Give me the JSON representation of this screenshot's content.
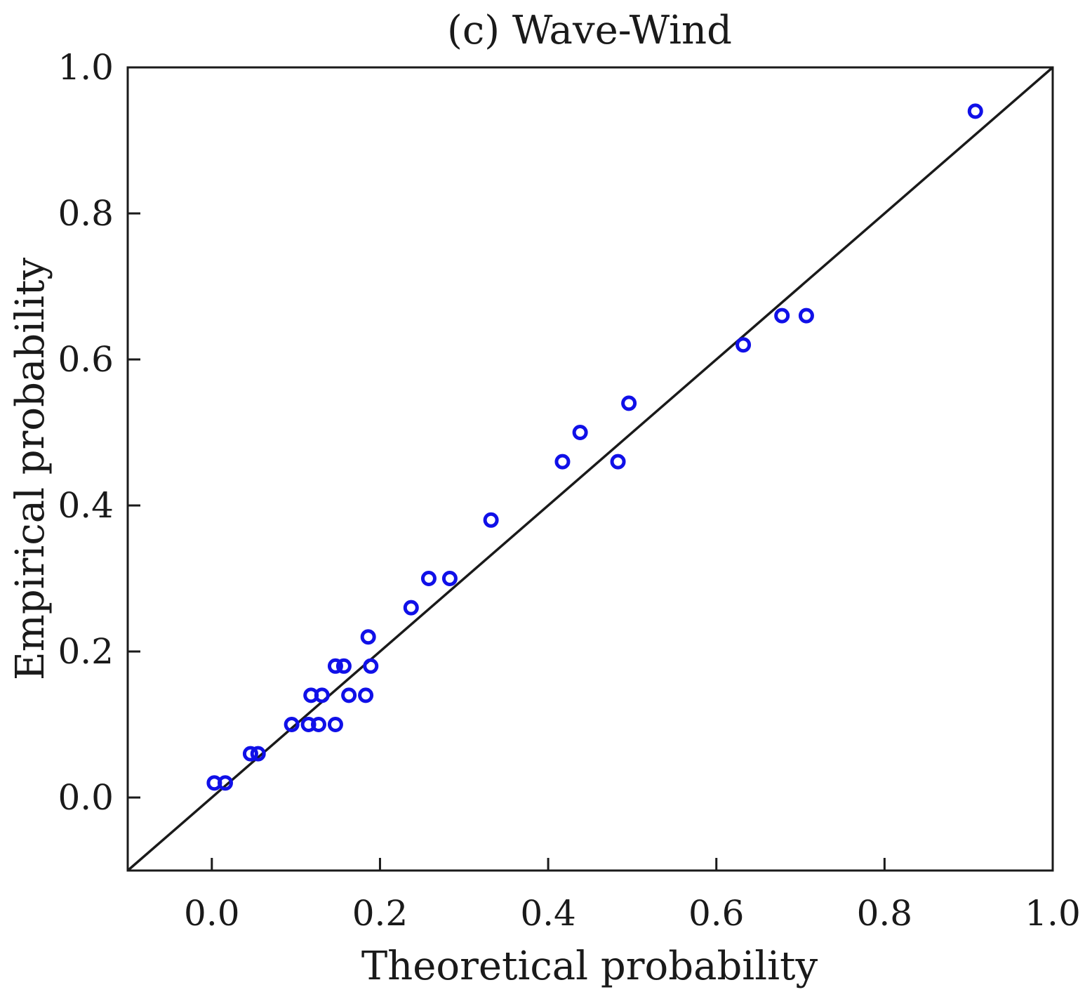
{
  "chart_data": {
    "type": "scatter",
    "title": "(c) Wave-Wind",
    "xlabel": "Theoretical probability",
    "ylabel": "Empirical probability",
    "xlim": [
      -0.1,
      1.0
    ],
    "ylim": [
      -0.1,
      1.0
    ],
    "xticks": [
      0.0,
      0.2,
      0.4,
      0.6,
      0.8,
      1.0
    ],
    "yticks": [
      0.0,
      0.2,
      0.4,
      0.6,
      0.8,
      1.0
    ],
    "xtick_labels": [
      "0.0",
      "0.2",
      "0.4",
      "0.6",
      "0.8",
      "1.0"
    ],
    "ytick_labels": [
      "0.0",
      "0.2",
      "0.4",
      "0.6",
      "0.8",
      "1.0"
    ],
    "grid": false,
    "reference_line": {
      "from": [
        -0.1,
        -0.1
      ],
      "to": [
        1.0,
        1.0
      ],
      "color": "#1a1a1a"
    },
    "series": [
      {
        "name": "observations",
        "marker": "open-circle",
        "color": "#1010e8",
        "points": [
          [
            0.003,
            0.02
          ],
          [
            0.016,
            0.02
          ],
          [
            0.046,
            0.06
          ],
          [
            0.055,
            0.06
          ],
          [
            0.095,
            0.1
          ],
          [
            0.115,
            0.1
          ],
          [
            0.127,
            0.1
          ],
          [
            0.147,
            0.1
          ],
          [
            0.118,
            0.14
          ],
          [
            0.131,
            0.14
          ],
          [
            0.163,
            0.14
          ],
          [
            0.183,
            0.14
          ],
          [
            0.147,
            0.18
          ],
          [
            0.157,
            0.18
          ],
          [
            0.189,
            0.18
          ],
          [
            0.186,
            0.22
          ],
          [
            0.237,
            0.26
          ],
          [
            0.258,
            0.3
          ],
          [
            0.283,
            0.3
          ],
          [
            0.332,
            0.38
          ],
          [
            0.417,
            0.46
          ],
          [
            0.483,
            0.46
          ],
          [
            0.438,
            0.5
          ],
          [
            0.496,
            0.54
          ],
          [
            0.632,
            0.62
          ],
          [
            0.678,
            0.66
          ],
          [
            0.707,
            0.66
          ],
          [
            0.908,
            0.94
          ]
        ]
      }
    ]
  }
}
